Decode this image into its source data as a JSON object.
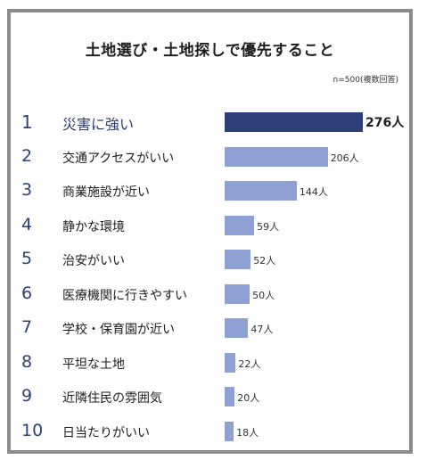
{
  "chart_data": {
    "type": "bar",
    "title": "土地選び・土地探しで優先すること",
    "note": "n=500(複数回答)",
    "categories": [
      "災害に強い",
      "交通アクセスがいい",
      "商業施設が近い",
      "静かな環境",
      "治安がいい",
      "医療機関に行きやすい",
      "学校・保育園が近い",
      "平坦な土地",
      "近隣住民の雰囲気",
      "日当たりがいい"
    ],
    "ranks": [
      "1",
      "2",
      "3",
      "4",
      "5",
      "6",
      "7",
      "8",
      "9",
      "10"
    ],
    "values": [
      276,
      206,
      144,
      59,
      52,
      50,
      47,
      22,
      20,
      18
    ],
    "value_labels": [
      "276人",
      "206人",
      "144人",
      "59人",
      "52人",
      "50人",
      "47人",
      "22人",
      "20人",
      "18人"
    ],
    "xlim": [
      0,
      276
    ],
    "colors": {
      "highlight": "#2f3e79",
      "bar": "#8fa0d2"
    }
  }
}
